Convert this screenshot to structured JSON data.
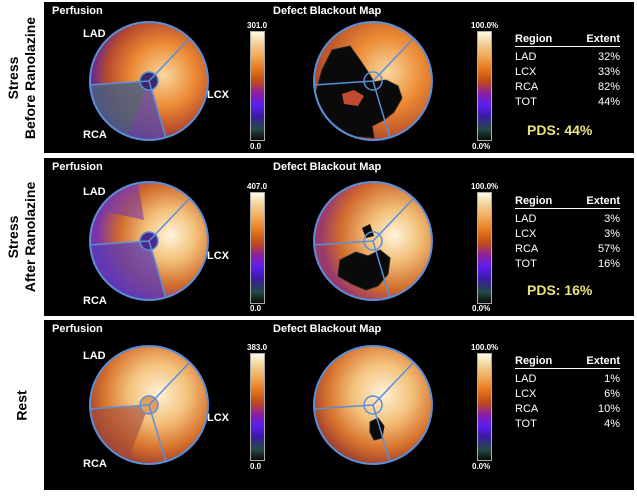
{
  "rows": [
    {
      "label_lines": [
        "Stress",
        "Before Ranolazine"
      ],
      "perfusion_title": "Perfusion",
      "map_title": "Defect Blackout Map",
      "region_labels": {
        "lad": "LAD",
        "lcx": "LCX",
        "rca": "RCA"
      },
      "perf_scale": {
        "max": "301.0",
        "min": "0.0"
      },
      "map_scale": {
        "max": "100.0%",
        "min": "0.0%"
      },
      "table_header": {
        "region": "Region",
        "extent": "Extent"
      },
      "table": [
        {
          "region": "LAD",
          "extent": "32%"
        },
        {
          "region": "LCX",
          "extent": "33%"
        },
        {
          "region": "RCA",
          "extent": "82%"
        },
        {
          "region": "TOT",
          "extent": "44%"
        }
      ],
      "pds": "PDS: 44%"
    },
    {
      "label_lines": [
        "Stress",
        "After Ranolazine"
      ],
      "perfusion_title": "Perfusion",
      "map_title": "Defect Blackout Map",
      "region_labels": {
        "lad": "LAD",
        "lcx": "LCX",
        "rca": "RCA"
      },
      "perf_scale": {
        "max": "407.0",
        "min": "0.0"
      },
      "map_scale": {
        "max": "100.0%",
        "min": "0.0%"
      },
      "table_header": {
        "region": "Region",
        "extent": "Extent"
      },
      "table": [
        {
          "region": "LAD",
          "extent": "3%"
        },
        {
          "region": "LCX",
          "extent": "3%"
        },
        {
          "region": "RCA",
          "extent": "57%"
        },
        {
          "region": "TOT",
          "extent": "16%"
        }
      ],
      "pds": "PDS: 16%"
    },
    {
      "label_lines": [
        "Rest"
      ],
      "perfusion_title": "Perfusion",
      "map_title": "Defect Blackout Map",
      "region_labels": {
        "lad": "LAD",
        "lcx": "LCX",
        "rca": "RCA"
      },
      "perf_scale": {
        "max": "383.0",
        "min": "0.0"
      },
      "map_scale": {
        "max": "100.0%",
        "min": "0.0%"
      },
      "table_header": {
        "region": "Region",
        "extent": "Extent"
      },
      "table": [
        {
          "region": "LAD",
          "extent": "1%"
        },
        {
          "region": "LCX",
          "extent": "6%"
        },
        {
          "region": "RCA",
          "extent": "10%"
        },
        {
          "region": "TOT",
          "extent": "4%"
        }
      ],
      "pds": ""
    }
  ],
  "colors": {
    "panel_bg": "#000000",
    "pds_text": "#e8e47a",
    "territory_line": "#5b8fd8"
  }
}
